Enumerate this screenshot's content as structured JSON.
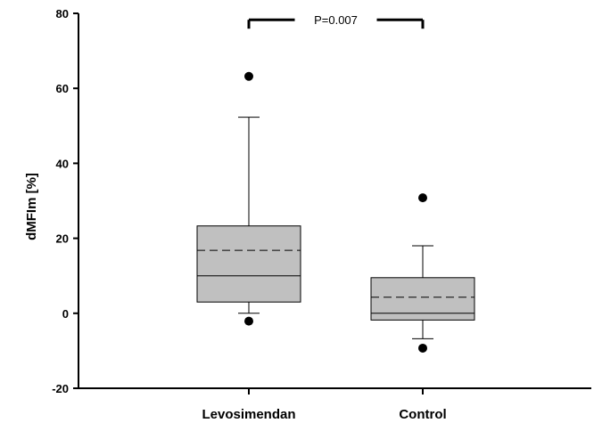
{
  "chart_data": {
    "type": "box",
    "categories": [
      "Levosimendan",
      "Control"
    ],
    "ylabel": "dMFIm [%]",
    "ylim": [
      -20,
      80
    ],
    "yticks": [
      -20,
      0,
      20,
      40,
      60,
      80
    ],
    "grid": false,
    "boxes": [
      {
        "category": "Levosimendan",
        "whisker_low": 0,
        "q1": 3,
        "median": 10,
        "mean": 16.8,
        "q3": 23.3,
        "whisker_high": 52.3,
        "outliers": [
          63.2,
          -2.1
        ]
      },
      {
        "category": "Control",
        "whisker_low": -6.8,
        "q1": -1.8,
        "median": 0,
        "mean": 4.3,
        "q3": 9.5,
        "whisker_high": 18,
        "outliers": [
          30.8,
          -9.3
        ]
      }
    ],
    "annotations": [
      {
        "text": "P=0.007",
        "between": [
          "Levosimendan",
          "Control"
        ],
        "y": 79
      }
    ],
    "colors": {
      "box_fill": "#c0c0c0",
      "stroke": "#000000",
      "outlier": "#000000"
    }
  }
}
